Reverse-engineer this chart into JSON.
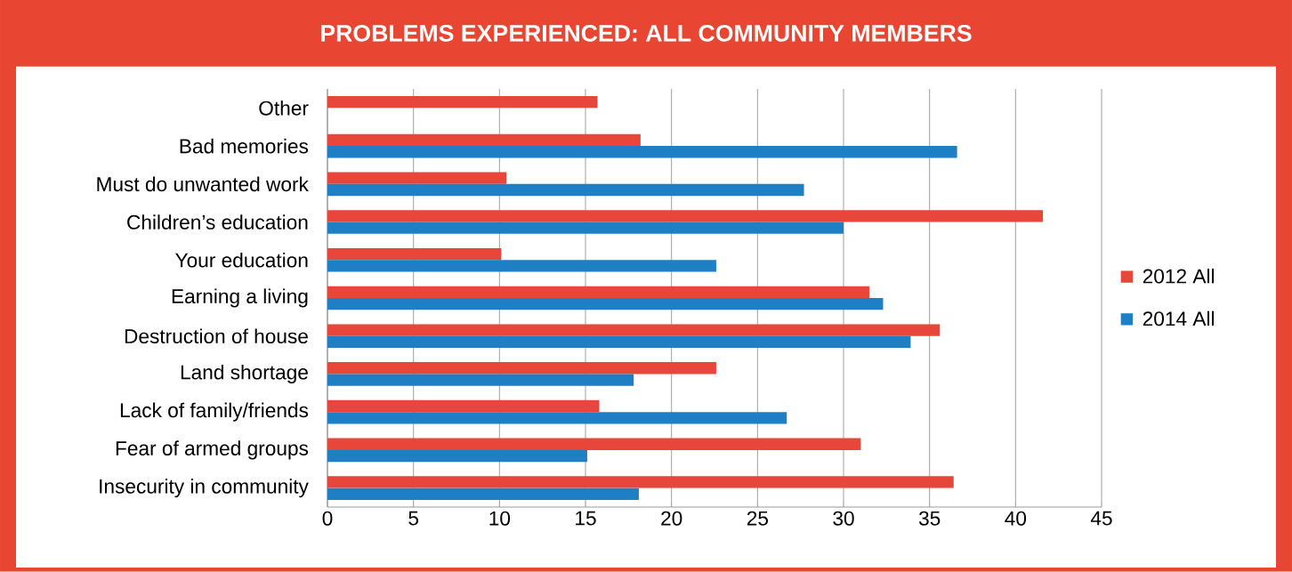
{
  "chart_data": {
    "type": "bar",
    "orientation": "horizontal",
    "title": "PROBLEMS EXPERIENCED: ALL COMMUNITY MEMBERS",
    "categories": [
      "Other",
      "Bad memories",
      "Must do unwanted work",
      "Children’s education",
      "Your education",
      "Earning a living",
      "Destruction of house",
      "Land shortage",
      "Lack of family/friends",
      "Fear of armed groups",
      "Insecurity in community"
    ],
    "series": [
      {
        "name": "2012 All",
        "color": "#e8463a",
        "values": [
          15.7,
          18.2,
          10.4,
          41.6,
          10.1,
          31.5,
          35.6,
          22.6,
          15.8,
          31.0,
          36.4
        ]
      },
      {
        "name": "2014 All",
        "color": "#1f7fc4",
        "values": [
          null,
          36.6,
          27.7,
          30.0,
          22.6,
          32.3,
          33.9,
          17.8,
          26.7,
          15.1,
          18.1
        ]
      }
    ],
    "xlim": [
      0,
      45
    ],
    "xticks": [
      0,
      5,
      10,
      15,
      20,
      25,
      30,
      35,
      40,
      45
    ],
    "grid": "x",
    "legend": "right"
  }
}
